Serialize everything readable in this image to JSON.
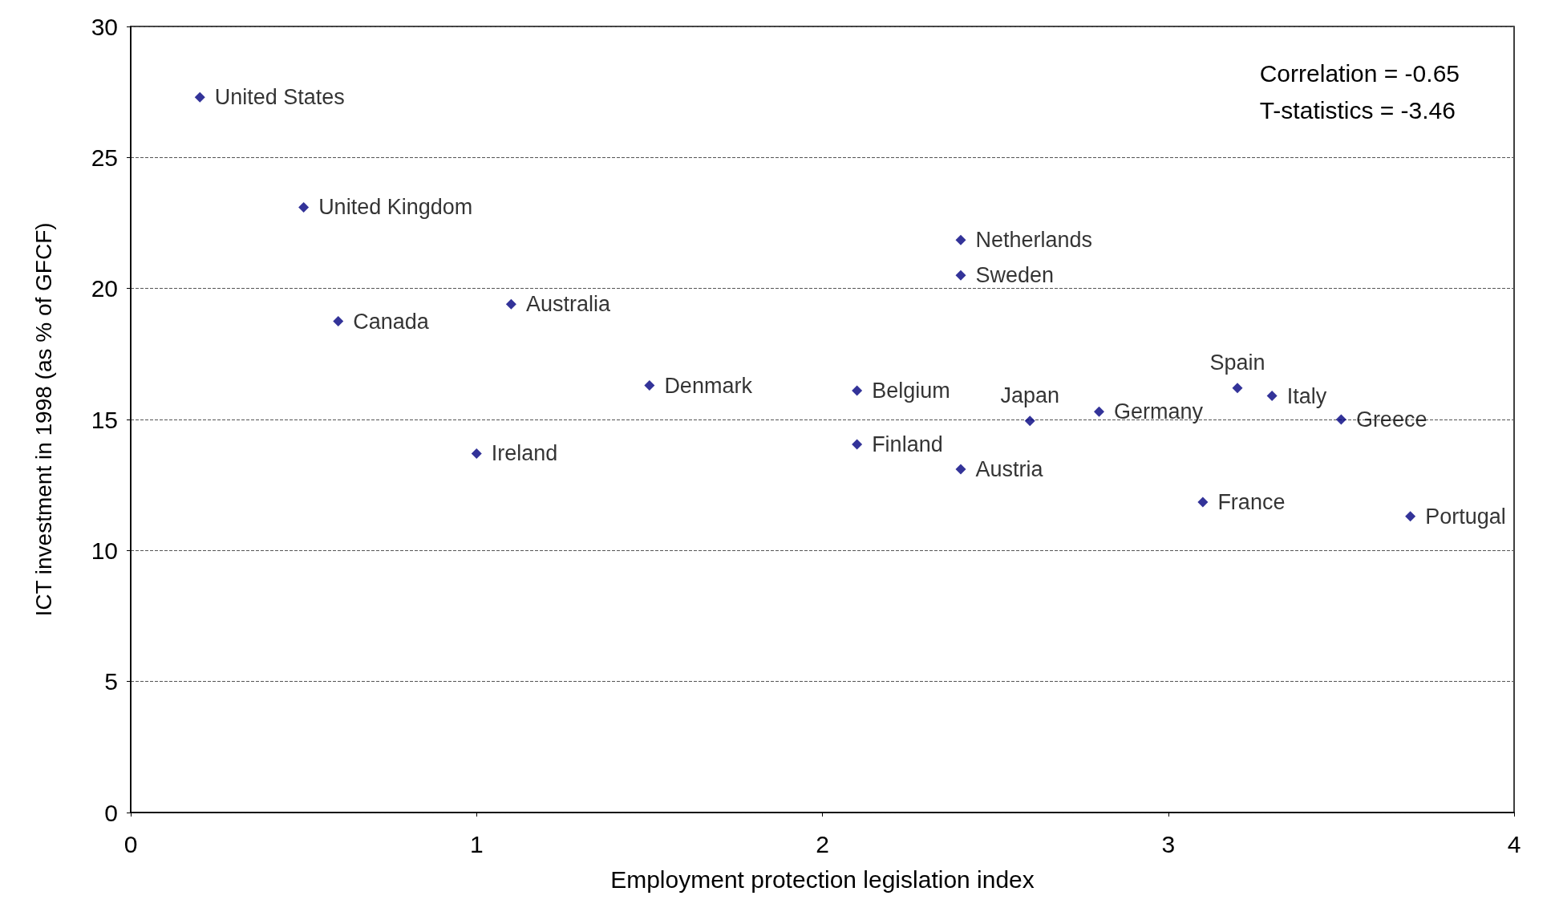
{
  "chart_data": {
    "type": "scatter",
    "xlabel": "Employment protection legislation index",
    "ylabel": "ICT investment in 1998 (as % of GFCF)",
    "annotations": [
      "Correlation = -0.65",
      "T-statistics = -3.46"
    ],
    "xlim": [
      0,
      4
    ],
    "xticks": [
      0,
      1,
      2,
      3,
      4
    ],
    "ylim": [
      0,
      30
    ],
    "yticks": [
      0,
      5,
      10,
      15,
      20,
      25,
      30
    ],
    "grid": "y",
    "marker": "diamond",
    "legend": false,
    "series": [
      {
        "name": "United States",
        "color": "#000080",
        "x": [
          0.2
        ],
        "values": [
          27.3
        ]
      },
      {
        "name": "United Kingdom",
        "color": "#000080",
        "x": [
          0.5
        ],
        "values": [
          23.1
        ]
      },
      {
        "name": "Canada",
        "color": "#000080",
        "x": [
          0.6
        ],
        "values": [
          18.75
        ]
      },
      {
        "name": "Australia",
        "color": "#000080",
        "x": [
          1.1
        ],
        "values": [
          19.4
        ]
      },
      {
        "name": "Ireland",
        "color": "#000080",
        "x": [
          1.0
        ],
        "values": [
          13.7
        ]
      },
      {
        "name": "Denmark",
        "color": "#000080",
        "x": [
          1.5
        ],
        "values": [
          16.3
        ]
      },
      {
        "name": "Belgium",
        "color": "#000080",
        "x": [
          2.1
        ],
        "values": [
          16.1
        ]
      },
      {
        "name": "Finland",
        "color": "#000080",
        "x": [
          2.1
        ],
        "values": [
          14.05
        ]
      },
      {
        "name": "Netherlands",
        "color": "#000080",
        "x": [
          2.4
        ],
        "values": [
          21.85
        ]
      },
      {
        "name": "Sweden",
        "color": "#000080",
        "x": [
          2.4
        ],
        "values": [
          20.5
        ]
      },
      {
        "name": "Austria",
        "color": "#000080",
        "x": [
          2.4
        ],
        "values": [
          13.1
        ]
      },
      {
        "name": "Japan",
        "color": "#000080",
        "x": [
          2.6
        ],
        "values": [
          14.95
        ]
      },
      {
        "name": "Germany",
        "color": "#000080",
        "x": [
          2.8
        ],
        "values": [
          15.3
        ]
      },
      {
        "name": "Spain",
        "color": "#000080",
        "x": [
          3.2
        ],
        "values": [
          16.2
        ]
      },
      {
        "name": "Italy",
        "color": "#000080",
        "x": [
          3.3
        ],
        "values": [
          15.9
        ]
      },
      {
        "name": "Greece",
        "color": "#000080",
        "x": [
          3.5
        ],
        "values": [
          15.0
        ]
      },
      {
        "name": "France",
        "color": "#000080",
        "x": [
          3.1
        ],
        "values": [
          11.85
        ]
      },
      {
        "name": "Portugal",
        "color": "#000080",
        "x": [
          3.7
        ],
        "values": [
          11.3
        ]
      }
    ]
  }
}
